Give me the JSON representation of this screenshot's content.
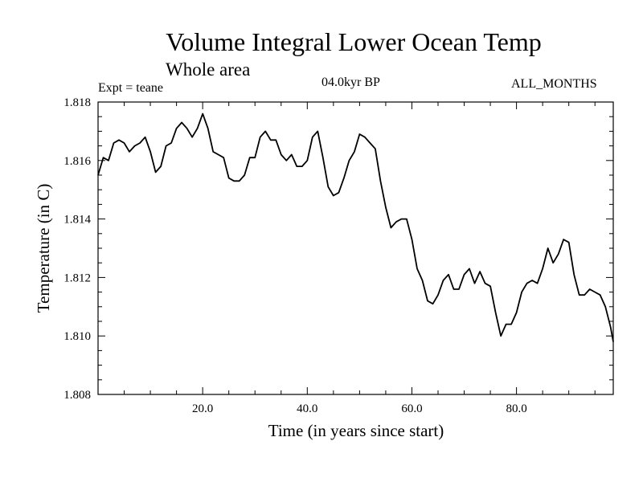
{
  "header": {
    "title": "Volume Integral Lower Ocean Temp",
    "subtitle": "Whole area",
    "expt": "Expt = teane",
    "period": "04.0kyr BP",
    "months": "ALL_MONTHS"
  },
  "chart_data": {
    "type": "line",
    "title": "Volume Integral Lower Ocean Temp",
    "xlabel": "Time (in years since start)",
    "ylabel": "Temperature (in C)",
    "xlim": [
      0,
      98.5
    ],
    "ylim": [
      1.808,
      1.818
    ],
    "xticks": [
      20,
      40,
      60,
      80
    ],
    "xtick_labels": [
      "20.0",
      "40.0",
      "60.0",
      "80.0"
    ],
    "yticks": [
      1.808,
      1.81,
      1.812,
      1.814,
      1.816,
      1.818
    ],
    "ytick_labels": [
      "1.808",
      "1.810",
      "1.812",
      "1.814",
      "1.816",
      "1.818"
    ],
    "grid": false,
    "series": [
      {
        "name": "Volume Integral Lower Ocean Temp",
        "x": [
          0,
          1,
          2,
          3,
          4,
          5,
          6,
          7,
          8,
          9,
          10,
          11,
          12,
          13,
          14,
          15,
          16,
          17,
          18,
          19,
          20,
          21,
          22,
          23,
          24,
          25,
          26,
          27,
          28,
          29,
          30,
          31,
          32,
          33,
          34,
          35,
          36,
          37,
          38,
          39,
          40,
          41,
          42,
          43,
          44,
          45,
          46,
          47,
          48,
          49,
          50,
          51,
          52,
          53,
          54,
          55,
          56,
          57,
          58,
          59,
          60,
          61,
          62,
          63,
          64,
          65,
          66,
          67,
          68,
          69,
          70,
          71,
          72,
          73,
          74,
          75,
          76,
          77,
          78,
          79,
          80,
          81,
          82,
          83,
          84,
          85,
          86,
          87,
          88,
          89,
          90,
          91,
          92,
          93,
          94,
          95,
          96,
          97,
          98,
          98.5
        ],
        "values": [
          1.8155,
          1.8161,
          1.816,
          1.8166,
          1.8167,
          1.8166,
          1.8163,
          1.8165,
          1.8166,
          1.8168,
          1.8163,
          1.8156,
          1.8158,
          1.8165,
          1.8166,
          1.8171,
          1.8173,
          1.8171,
          1.8168,
          1.8171,
          1.8176,
          1.8171,
          1.8163,
          1.8162,
          1.8161,
          1.8154,
          1.8153,
          1.8153,
          1.8155,
          1.8161,
          1.8161,
          1.8168,
          1.817,
          1.8167,
          1.8167,
          1.8162,
          1.816,
          1.8162,
          1.8158,
          1.8158,
          1.816,
          1.8168,
          1.817,
          1.8161,
          1.8151,
          1.8148,
          1.8149,
          1.8154,
          1.816,
          1.8163,
          1.8169,
          1.8168,
          1.8166,
          1.8164,
          1.8153,
          1.8144,
          1.8137,
          1.8139,
          1.814,
          1.814,
          1.8133,
          1.8123,
          1.8119,
          1.8112,
          1.8111,
          1.8114,
          1.8119,
          1.8121,
          1.8116,
          1.8116,
          1.8121,
          1.8123,
          1.8118,
          1.8122,
          1.8118,
          1.8117,
          1.8108,
          1.81,
          1.8104,
          1.8104,
          1.8108,
          1.8115,
          1.8118,
          1.8119,
          1.8118,
          1.8123,
          1.813,
          1.8125,
          1.8128,
          1.8133,
          1.8132,
          1.8121,
          1.8114,
          1.8114,
          1.8116,
          1.8115,
          1.8114,
          1.811,
          1.8103,
          1.8098
        ]
      }
    ]
  }
}
